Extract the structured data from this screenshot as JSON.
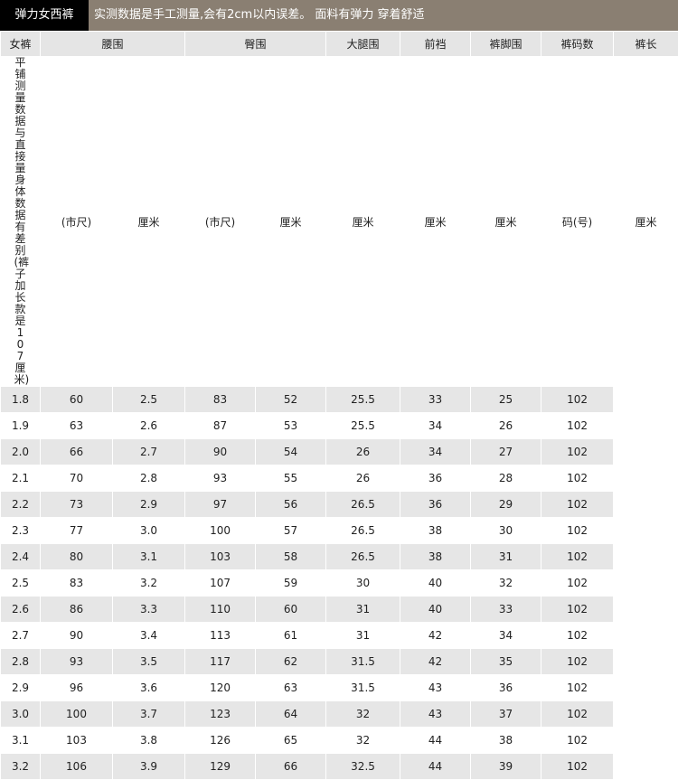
{
  "header": {
    "title": "弹力女西裤",
    "note": "实测数据是手工测量,会有2cm以内误差。 面料有弹力 穿着舒适"
  },
  "table": {
    "corner": "女裤",
    "groups": [
      "腰围",
      "臀围",
      "大腿围",
      "前裆",
      "裤脚围",
      "裤码数",
      "裤长"
    ],
    "subheaders": [
      "(市尺)",
      "厘米",
      "(市尺)",
      "厘米",
      "厘米",
      "厘米",
      "厘米",
      "码(号)",
      "厘米"
    ],
    "side_note": "平铺测量数据与直接量身体数据有差别(裤子加长款是107厘米)",
    "rows": [
      [
        "1.8",
        "60",
        "2.5",
        "83",
        "52",
        "25.5",
        "33",
        "25",
        "102"
      ],
      [
        "1.9",
        "63",
        "2.6",
        "87",
        "53",
        "25.5",
        "34",
        "26",
        "102"
      ],
      [
        "2.0",
        "66",
        "2.7",
        "90",
        "54",
        "26",
        "34",
        "27",
        "102"
      ],
      [
        "2.1",
        "70",
        "2.8",
        "93",
        "55",
        "26",
        "36",
        "28",
        "102"
      ],
      [
        "2.2",
        "73",
        "2.9",
        "97",
        "56",
        "26.5",
        "36",
        "29",
        "102"
      ],
      [
        "2.3",
        "77",
        "3.0",
        "100",
        "57",
        "26.5",
        "38",
        "30",
        "102"
      ],
      [
        "2.4",
        "80",
        "3.1",
        "103",
        "58",
        "26.5",
        "38",
        "31",
        "102"
      ],
      [
        "2.5",
        "83",
        "3.2",
        "107",
        "59",
        "30",
        "40",
        "32",
        "102"
      ],
      [
        "2.6",
        "86",
        "3.3",
        "110",
        "60",
        "31",
        "40",
        "33",
        "102"
      ],
      [
        "2.7",
        "90",
        "3.4",
        "113",
        "61",
        "31",
        "42",
        "34",
        "102"
      ],
      [
        "2.8",
        "93",
        "3.5",
        "117",
        "62",
        "31.5",
        "42",
        "35",
        "102"
      ],
      [
        "2.9",
        "96",
        "3.6",
        "120",
        "63",
        "31.5",
        "43",
        "36",
        "102"
      ],
      [
        "3.0",
        "100",
        "3.7",
        "123",
        "64",
        "32",
        "43",
        "37",
        "102"
      ],
      [
        "3.1",
        "103",
        "3.8",
        "126",
        "65",
        "32",
        "44",
        "38",
        "102"
      ],
      [
        "3.2",
        "106",
        "3.9",
        "129",
        "66",
        "32.5",
        "44",
        "39",
        "102"
      ]
    ]
  }
}
